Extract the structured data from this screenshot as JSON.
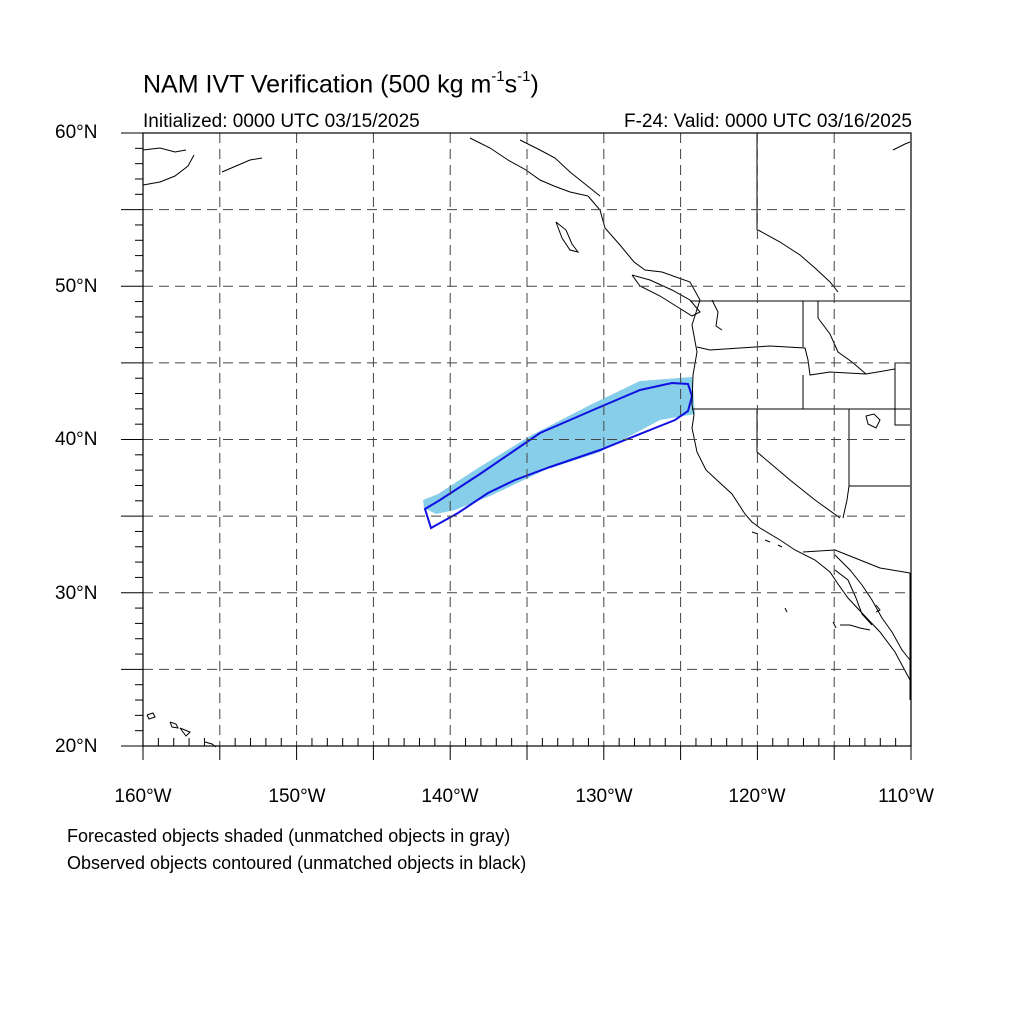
{
  "title": {
    "main": "NAM IVT Verification (500 kg m",
    "exp1": "-1",
    "mid": "s",
    "exp2": "-1",
    "end": ")"
  },
  "initialized": "Initialized: 0000 UTC 03/15/2025",
  "valid": "F-24: Valid: 0000 UTC 03/16/2025",
  "lat_labels": [
    "60°N",
    "50°N",
    "40°N",
    "30°N",
    "20°N"
  ],
  "lon_labels": [
    "160°W",
    "150°W",
    "140°W",
    "130°W",
    "120°W",
    "110°W"
  ],
  "footnote_1": "Forecasted objects shaded (unmatched objects in gray)",
  "footnote_2": "Observed objects contoured (unmatched objects in black)",
  "colors": {
    "forecast_fill": "#87CEEB",
    "observed_contour": "#1010E0",
    "grid": "#444444"
  }
}
